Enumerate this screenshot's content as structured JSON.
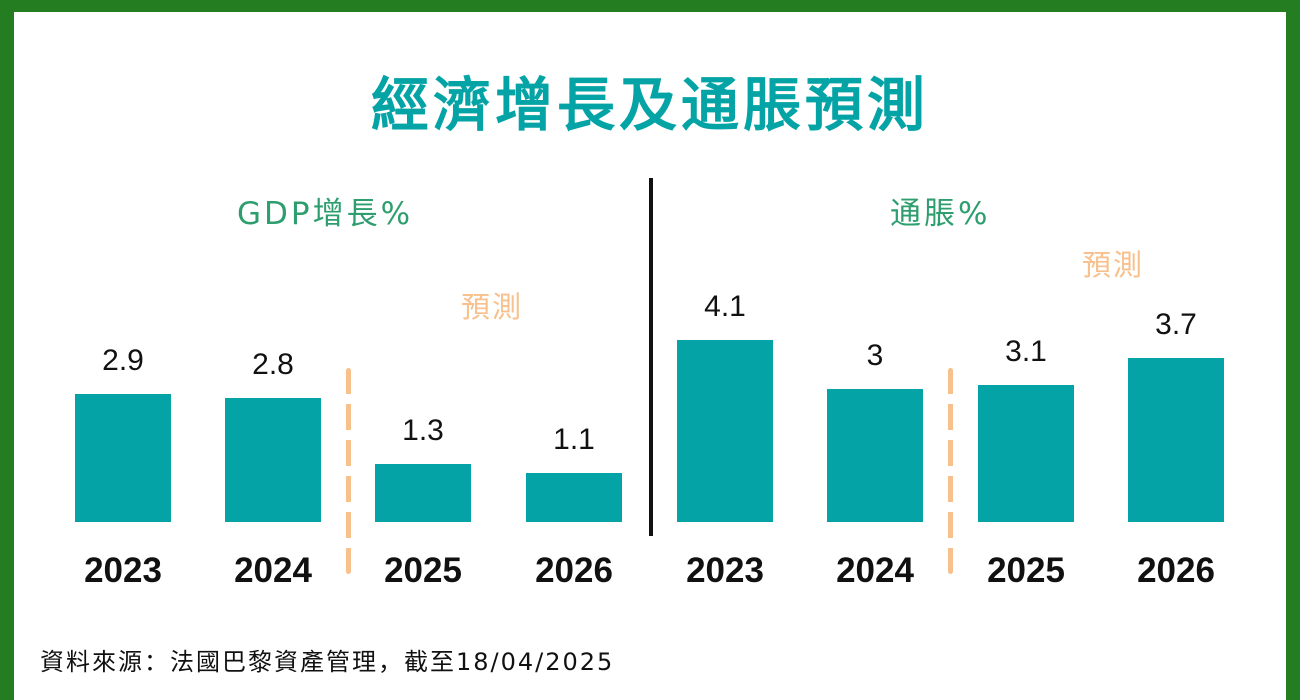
{
  "title": "經濟增長及通脹預測",
  "forecast_label": "預測",
  "source": "資料來源：法國巴黎資產管理，截至18/04/2025",
  "colors": {
    "bar": "#04a3a5",
    "title": "#04a3a5",
    "subtitle": "#2e9e6e",
    "forecast": "#f7c08c",
    "border": "#257d22"
  },
  "chart_data": [
    {
      "type": "bar",
      "title": "GDP增長%",
      "categories": [
        "2023",
        "2024",
        "2025",
        "2026"
      ],
      "values": [
        2.9,
        2.8,
        1.3,
        1.1
      ],
      "forecast_from": "2025",
      "value_labels": [
        "2.9",
        "2.8",
        "1.3",
        "1.1"
      ]
    },
    {
      "type": "bar",
      "title": "通脹%",
      "categories": [
        "2023",
        "2024",
        "2025",
        "2026"
      ],
      "values": [
        4.1,
        3,
        3.1,
        3.7
      ],
      "forecast_from": "2025",
      "value_labels": [
        "4.1",
        "3",
        "3.1",
        "3.7"
      ]
    }
  ]
}
